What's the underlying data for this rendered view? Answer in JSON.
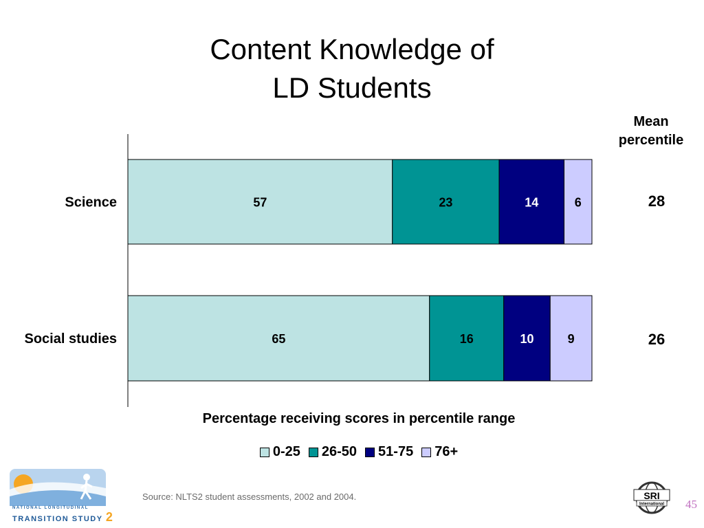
{
  "title_lines": [
    "Content Knowledge of",
    "LD Students"
  ],
  "mean_header_lines": [
    "Mean",
    "percentile"
  ],
  "chart_data": {
    "type": "bar",
    "orientation": "horizontal",
    "stacked": true,
    "categories": [
      "Science",
      "Social studies"
    ],
    "series": [
      {
        "name": "0-25",
        "values": [
          57,
          65
        ],
        "color": "#bde3e3"
      },
      {
        "name": "26-50",
        "values": [
          23,
          16
        ],
        "color": "#009494"
      },
      {
        "name": "51-75",
        "values": [
          14,
          10
        ],
        "color": "#000080"
      },
      {
        "name": "76+",
        "values": [
          6,
          9
        ],
        "color": "#ccccff"
      }
    ],
    "label_colors": [
      "#000000",
      "#000000",
      "#ffffff",
      "#000000"
    ],
    "mean_percentile": [
      "28",
      "26"
    ],
    "xlabel": "Percentage receiving scores in percentile range",
    "xlim": [
      0,
      100
    ],
    "legend_position": "bottom",
    "grid": false
  },
  "source": "Source: NLTS2 student assessments, 2002 and 2004.",
  "page_number": "45",
  "logos": {
    "left_line1": "NATIONAL LONGITUDINAL",
    "left_line2": "TRANSITION STUDY",
    "left_num": "2",
    "right_text": "SRI",
    "right_sub": "International"
  }
}
